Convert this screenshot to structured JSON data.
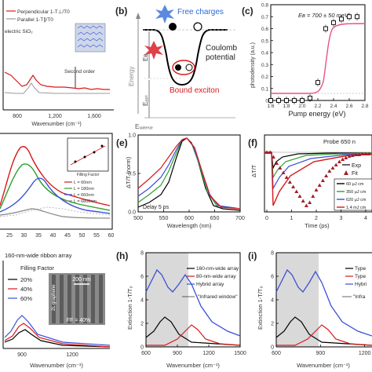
{
  "panels": {
    "a": {
      "label": "",
      "legend": [
        "Perpendicular 1-T⊥/T0",
        "Parallel 1-T∥/T0"
      ],
      "text_dielectric": "electric SiO₂",
      "annotation": "Second order",
      "xlabel": "Wavenumber (cm⁻¹)",
      "xticks": [
        "800",
        "1,200",
        "1,600"
      ]
    },
    "b": {
      "label": "(b)",
      "free": "Free charges",
      "coulomb1": "Coulomb",
      "coulomb2": "potential",
      "bound": "Bound exciton",
      "energy": "Energy",
      "eb": "Eʙ",
      "eopt": "Eₒₚₜ",
      "evalence": "Eᵥₐₗₑₙⱼₑ"
    },
    "c": {
      "label": "(c)",
      "annotation": "Eʙ = 700 ± 50 meV",
      "ylabel": "photodensity (a.u.)",
      "xlabel": "Pump energy (eV)"
    },
    "d": {
      "label": "",
      "legend": [
        "L = 60nm",
        "L = 180nm",
        "L = 660nm",
        "L = 6800nm"
      ],
      "inset_xlabel": "Filling Factor",
      "xticks": [
        "25",
        "30",
        "35",
        "40",
        "45",
        "50",
        "55",
        "60"
      ]
    },
    "e": {
      "label": "(e)",
      "ylabel": "ΔT/T (norm)",
      "xlabel": "Wavelength (nm)",
      "note": "Delay 5 ps"
    },
    "f": {
      "label": "(f)",
      "title": "Probe 650 n",
      "ylabel": "ΔT/T",
      "xlabel": "Time (ps)",
      "fitlegend": [
        "Exp",
        "Fit"
      ],
      "legend": [
        "60 μJ cm",
        "350 μJ cm",
        "620 μJ cm",
        "1.4 mJ cm"
      ]
    },
    "g": {
      "label": "",
      "title": "160-nm-wide ribbon array",
      "legend_title": "Filling Factor",
      "legend": [
        "20%",
        "40%",
        "60%"
      ],
      "inset_scale": "200 nm",
      "inset_ff": "FF = 40%",
      "inset_graphene": "2L graphene",
      "xlabel": "Wavenumber (cm⁻¹)",
      "xticks": [
        "900",
        "1200"
      ]
    },
    "h": {
      "label": "(h)",
      "ylabel": "Extinction 1-T/T₀",
      "legend": [
        "160-nm-wide array",
        "80-nm-wide array",
        "Hybrid array"
      ],
      "window": "\"Infrared window\"",
      "xlabel": "Wavenumber (cm⁻¹)",
      "xticks": [
        "600",
        "900",
        "1200",
        "1500"
      ]
    },
    "i": {
      "label": "(i)",
      "ylabel": "Extinction 1-T/T₀",
      "legend": [
        "Type",
        "Type",
        "Hybri"
      ],
      "window": "\"Infra",
      "xlabel": "Wavenumber (cm⁻¹)",
      "xticks": [
        "600",
        "900",
        "1200"
      ]
    }
  },
  "colors": {
    "red": "#d7191c",
    "blue": "#3b4fd8",
    "green": "#2ca02c",
    "black": "#000000",
    "gray": "#888888",
    "pink": "#e75480"
  },
  "chart_data": [
    {
      "type": "line",
      "panel": "c",
      "x": [
        1.6,
        1.7,
        1.8,
        1.9,
        2.0,
        2.1,
        2.2,
        2.3,
        2.4,
        2.5,
        2.6,
        2.7
      ],
      "series": [
        {
          "name": "data",
          "values": [
            0,
            0,
            0,
            0,
            0,
            0.02,
            0.15,
            0.6,
            0.65,
            0.68,
            0.7,
            0.7
          ]
        }
      ],
      "xlim": [
        1.6,
        2.8
      ],
      "ylim": [
        0,
        0.8
      ],
      "yticks": [
        0,
        0.1,
        0.2,
        0.3,
        0.4,
        0.5,
        0.6,
        0.7,
        0.8
      ],
      "xticks": [
        1.6,
        1.8,
        2.0,
        2.2,
        2.4,
        2.6,
        2.8
      ]
    },
    {
      "type": "line",
      "panel": "e",
      "x": [
        500,
        550,
        600,
        650,
        700
      ],
      "xlim": [
        500,
        700
      ],
      "ylim": [
        0,
        1.0
      ],
      "yticks": [
        0,
        0.5,
        1.0
      ],
      "xticks": [
        500,
        550,
        600,
        650,
        700
      ]
    },
    {
      "type": "line",
      "panel": "f",
      "x": [
        0,
        1,
        2,
        3,
        4
      ],
      "xlim": [
        0,
        4
      ],
      "ylim": [
        0,
        1
      ],
      "xticks": [
        0,
        1,
        2,
        3,
        4
      ]
    },
    {
      "type": "line",
      "panel": "h",
      "x": [
        600,
        900,
        1200,
        1500
      ],
      "xlim": [
        600,
        1500
      ],
      "ylim": [
        0,
        8
      ],
      "yticks": [
        0,
        2,
        4,
        6,
        8
      ]
    },
    {
      "type": "line",
      "panel": "i",
      "x": [
        600,
        900,
        1200
      ],
      "xlim": [
        600,
        1250
      ],
      "ylim": [
        0,
        8
      ],
      "yticks": [
        0,
        2,
        4,
        6,
        8
      ]
    }
  ]
}
